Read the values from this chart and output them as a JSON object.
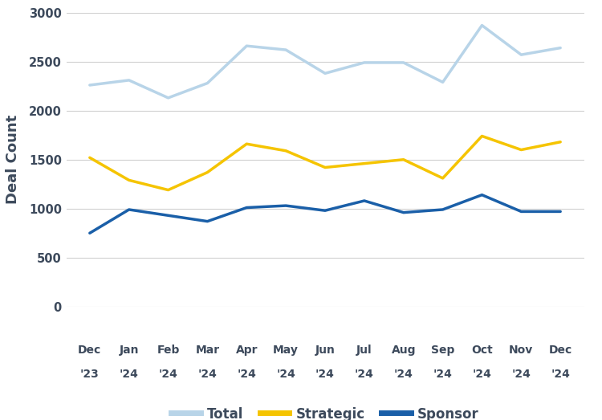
{
  "x_labels_line1": [
    "Dec",
    "Jan",
    "Feb",
    "Mar",
    "Apr",
    "May",
    "Jun",
    "Jul",
    "Aug",
    "Sep",
    "Oct",
    "Nov",
    "Dec"
  ],
  "x_labels_line2": [
    "'23",
    "'24",
    "'24",
    "'24",
    "'24",
    "'24",
    "'24",
    "'24",
    "'24",
    "'24",
    "'24",
    "'24",
    "'24"
  ],
  "total": [
    2260,
    2310,
    2130,
    2280,
    2660,
    2620,
    2380,
    2490,
    2490,
    2290,
    2870,
    2570,
    2640
  ],
  "strategic": [
    1520,
    1290,
    1190,
    1370,
    1660,
    1590,
    1420,
    1460,
    1500,
    1310,
    1740,
    1600,
    1680
  ],
  "sponsor": [
    750,
    990,
    930,
    870,
    1010,
    1030,
    980,
    1080,
    960,
    990,
    1140,
    970,
    970
  ],
  "total_color": "#b8d4e8",
  "strategic_color": "#f5c400",
  "sponsor_color": "#1a5fa8",
  "text_color": "#3d4a5c",
  "ylabel": "Deal Count",
  "ylim": [
    0,
    3000
  ],
  "yticks": [
    0,
    500,
    1000,
    1500,
    2000,
    2500,
    3000
  ],
  "legend_labels": [
    "Total",
    "Strategic",
    "Sponsor"
  ],
  "background_color": "#ffffff",
  "grid_color": "#d0d0d0",
  "line_width": 2.5
}
